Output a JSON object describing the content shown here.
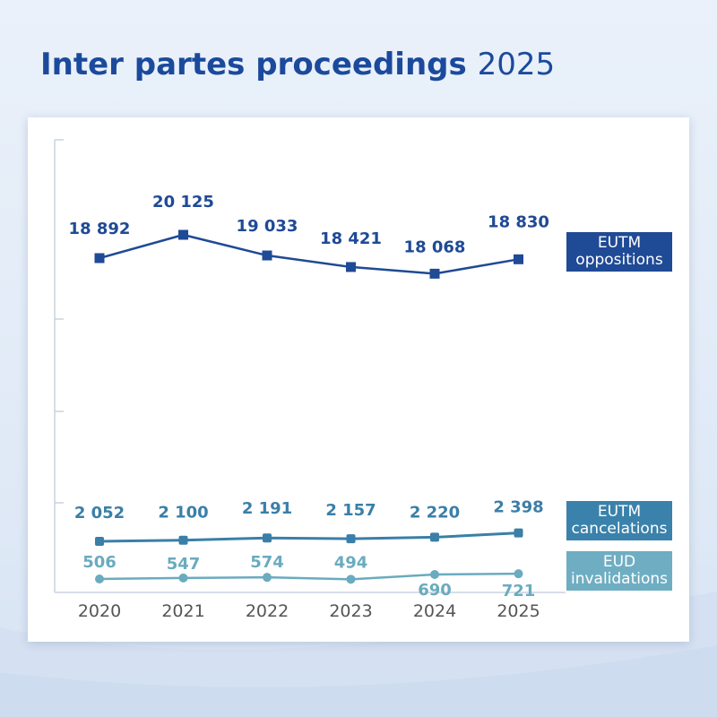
{
  "title": {
    "main": "Inter partes proceedings",
    "year": "2025"
  },
  "chart_data": {
    "type": "line",
    "x": [
      "2020",
      "2021",
      "2022",
      "2023",
      "2024",
      "2025"
    ],
    "series": [
      {
        "name": "EUTM oppositions",
        "label_lines": [
          "EUTM",
          "oppositions"
        ],
        "values": [
          18892,
          20125,
          19033,
          18421,
          18068,
          18830
        ],
        "value_labels": [
          "18 892",
          "20 125",
          "19 033",
          "18 421",
          "18 068",
          "18 830"
        ],
        "color": "#1f4a95",
        "marker": "square"
      },
      {
        "name": "EUTM cancelations",
        "label_lines": [
          "EUTM",
          "cancelations"
        ],
        "values": [
          2052,
          2100,
          2191,
          2157,
          2220,
          2398
        ],
        "value_labels": [
          "2 052",
          "2 100",
          "2 191",
          "2 157",
          "2 220",
          "2 398"
        ],
        "color": "#3a7fa8",
        "marker": "square"
      },
      {
        "name": "EUD invalidations",
        "label_lines": [
          "EUD",
          "invalidations"
        ],
        "values": [
          506,
          547,
          574,
          494,
          690,
          721
        ],
        "value_labels": [
          "506",
          "547",
          "574",
          "494",
          "690",
          "721"
        ],
        "color": "#6aabbf",
        "marker": "circle"
      }
    ],
    "axis_break": true,
    "grid": false,
    "legend": "right, boxed label next to each series"
  }
}
